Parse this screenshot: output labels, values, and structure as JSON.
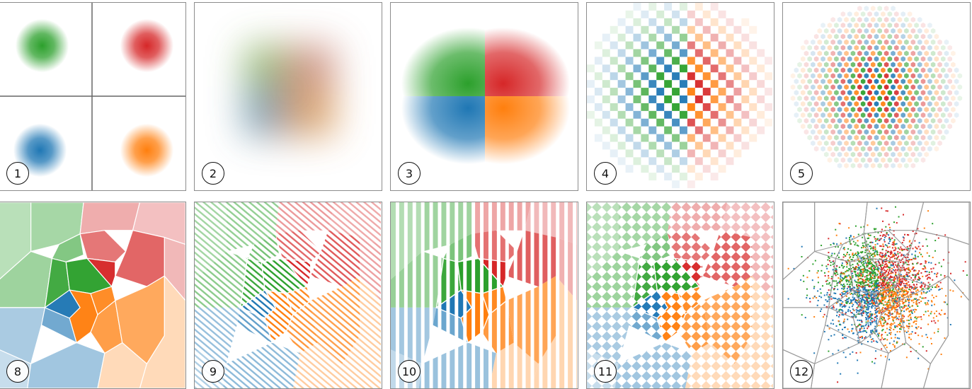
{
  "colors": {
    "green": "#2ca02c",
    "red": "#d62728",
    "blue": "#1f77b4",
    "orange": "#ff7f0e"
  },
  "panels": [
    {
      "label": "1"
    },
    {
      "label": "2"
    },
    {
      "label": "3"
    },
    {
      "label": "4"
    },
    {
      "label": "5"
    },
    {
      "label": "8"
    },
    {
      "label": "9"
    },
    {
      "label": "10"
    },
    {
      "label": "11"
    },
    {
      "label": "12"
    }
  ]
}
